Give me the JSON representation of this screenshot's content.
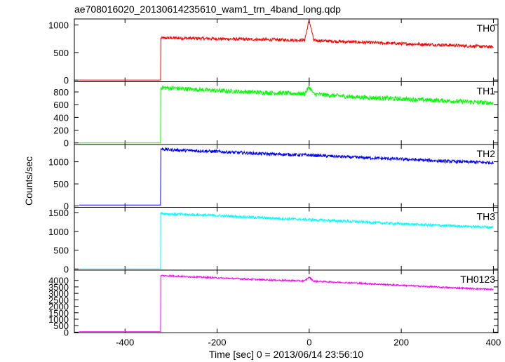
{
  "title": "ae708016020_20130614235610_wam1_trn_4band_long.qdp",
  "xlabel": "Time [sec] 0 = 2013/06/14 23:56:10",
  "ylabel": "Counts/sec",
  "chart_data": {
    "type": "line",
    "title": "ae708016020_20130614235610_wam1_trn_4band_long.qdp",
    "xlabel": "Time [sec] 0 = 2013/06/14 23:56:10",
    "ylabel": "Counts/sec",
    "xlim": [
      -510,
      410
    ],
    "xticks": [
      -400,
      -200,
      0,
      200,
      400
    ],
    "grid": false,
    "shared_x": true,
    "panels": [
      {
        "name": "TH0",
        "color": "#ff0000",
        "ylim": [
          -30,
          1110
        ],
        "yticks": [
          0,
          500,
          1000
        ],
        "points": [
          [
            -500,
            0
          ],
          [
            -322,
            0
          ],
          [
            -322,
            760
          ],
          [
            -300,
            765
          ],
          [
            -200,
            750
          ],
          [
            -100,
            735
          ],
          [
            -10,
            725
          ],
          [
            0,
            1090
          ],
          [
            10,
            720
          ],
          [
            100,
            690
          ],
          [
            200,
            660
          ],
          [
            300,
            635
          ],
          [
            400,
            600
          ]
        ],
        "noise": 28
      },
      {
        "name": "TH1",
        "color": "#00ff00",
        "ylim": [
          -25,
          960
        ],
        "yticks": [
          0,
          200,
          400,
          600,
          800
        ],
        "points": [
          [
            -500,
            0
          ],
          [
            -322,
            0
          ],
          [
            -322,
            870
          ],
          [
            -300,
            860
          ],
          [
            -200,
            820
          ],
          [
            -100,
            790
          ],
          [
            -10,
            770
          ],
          [
            0,
            880
          ],
          [
            10,
            765
          ],
          [
            100,
            720
          ],
          [
            200,
            690
          ],
          [
            300,
            660
          ],
          [
            400,
            625
          ]
        ],
        "noise": 35
      },
      {
        "name": "TH2",
        "color": "#0000ff",
        "ylim": [
          -30,
          1390
        ],
        "yticks": [
          0,
          500,
          1000
        ],
        "points": [
          [
            -500,
            20
          ],
          [
            -322,
            20
          ],
          [
            -322,
            1290
          ],
          [
            -300,
            1270
          ],
          [
            -200,
            1230
          ],
          [
            -100,
            1180
          ],
          [
            0,
            1150
          ],
          [
            100,
            1100
          ],
          [
            200,
            1060
          ],
          [
            300,
            1010
          ],
          [
            400,
            980
          ]
        ],
        "noise": 35
      },
      {
        "name": "TH3",
        "color": "#00ffff",
        "ylim": [
          -30,
          1640
        ],
        "yticks": [
          0,
          500,
          1000,
          1500
        ],
        "points": [
          [
            -500,
            0
          ],
          [
            -322,
            0
          ],
          [
            -322,
            1480
          ],
          [
            -300,
            1460
          ],
          [
            -200,
            1420
          ],
          [
            -100,
            1360
          ],
          [
            0,
            1310
          ],
          [
            100,
            1260
          ],
          [
            200,
            1200
          ],
          [
            300,
            1150
          ],
          [
            400,
            1110
          ]
        ],
        "noise": 35
      },
      {
        "name": "TH0123",
        "color": "#ff00ff",
        "ylim": [
          -60,
          4800
        ],
        "yticks": [
          0,
          500,
          1000,
          1500,
          2000,
          2500,
          3000,
          3500,
          4000
        ],
        "points": [
          [
            -500,
            30
          ],
          [
            -322,
            30
          ],
          [
            -322,
            4380
          ],
          [
            -300,
            4350
          ],
          [
            -200,
            4200
          ],
          [
            -100,
            4050
          ],
          [
            -10,
            3960
          ],
          [
            0,
            4250
          ],
          [
            10,
            3940
          ],
          [
            100,
            3800
          ],
          [
            200,
            3620
          ],
          [
            300,
            3450
          ],
          [
            400,
            3300
          ]
        ],
        "noise": 60
      }
    ]
  }
}
